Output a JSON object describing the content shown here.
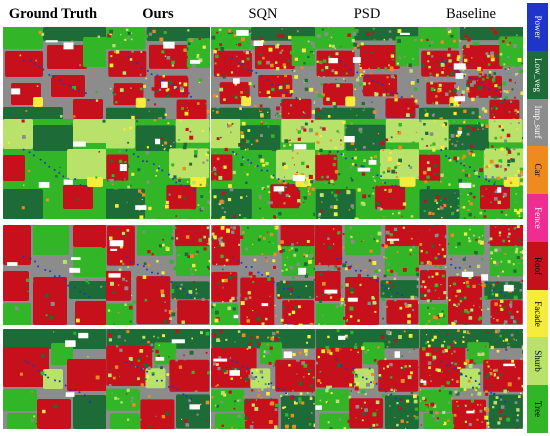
{
  "columns": [
    "Ground Truth",
    "Ours",
    "SQN",
    "PSD",
    "Baseline"
  ],
  "legend": [
    {
      "label": "Power",
      "color": "#1f35c8",
      "text_color": "#ffffff"
    },
    {
      "label": "Low_veg",
      "color": "#1d6b37",
      "text_color": "#ffffff"
    },
    {
      "label": "Imp_surf",
      "color": "#8c8c8c",
      "text_color": "#ffffff"
    },
    {
      "label": "Car",
      "color": "#ef8a1e",
      "text_color": "#000000"
    },
    {
      "label": "Fence",
      "color": "#ee2c92",
      "text_color": "#ffffff"
    },
    {
      "label": "Roof",
      "color": "#c6101c",
      "text_color": "#000000"
    },
    {
      "label": "Facade",
      "color": "#f6ec3c",
      "text_color": "#000000"
    },
    {
      "label": "Shurb",
      "color": "#b8e26a",
      "text_color": "#000000"
    },
    {
      "label": "Tree",
      "color": "#33b528",
      "text_color": "#000000"
    }
  ],
  "rows": [
    {
      "scene": "scene-1"
    },
    {
      "scene": "scene-2"
    },
    {
      "scene": "scene-3"
    },
    {
      "scene": "scene-4"
    }
  ]
}
